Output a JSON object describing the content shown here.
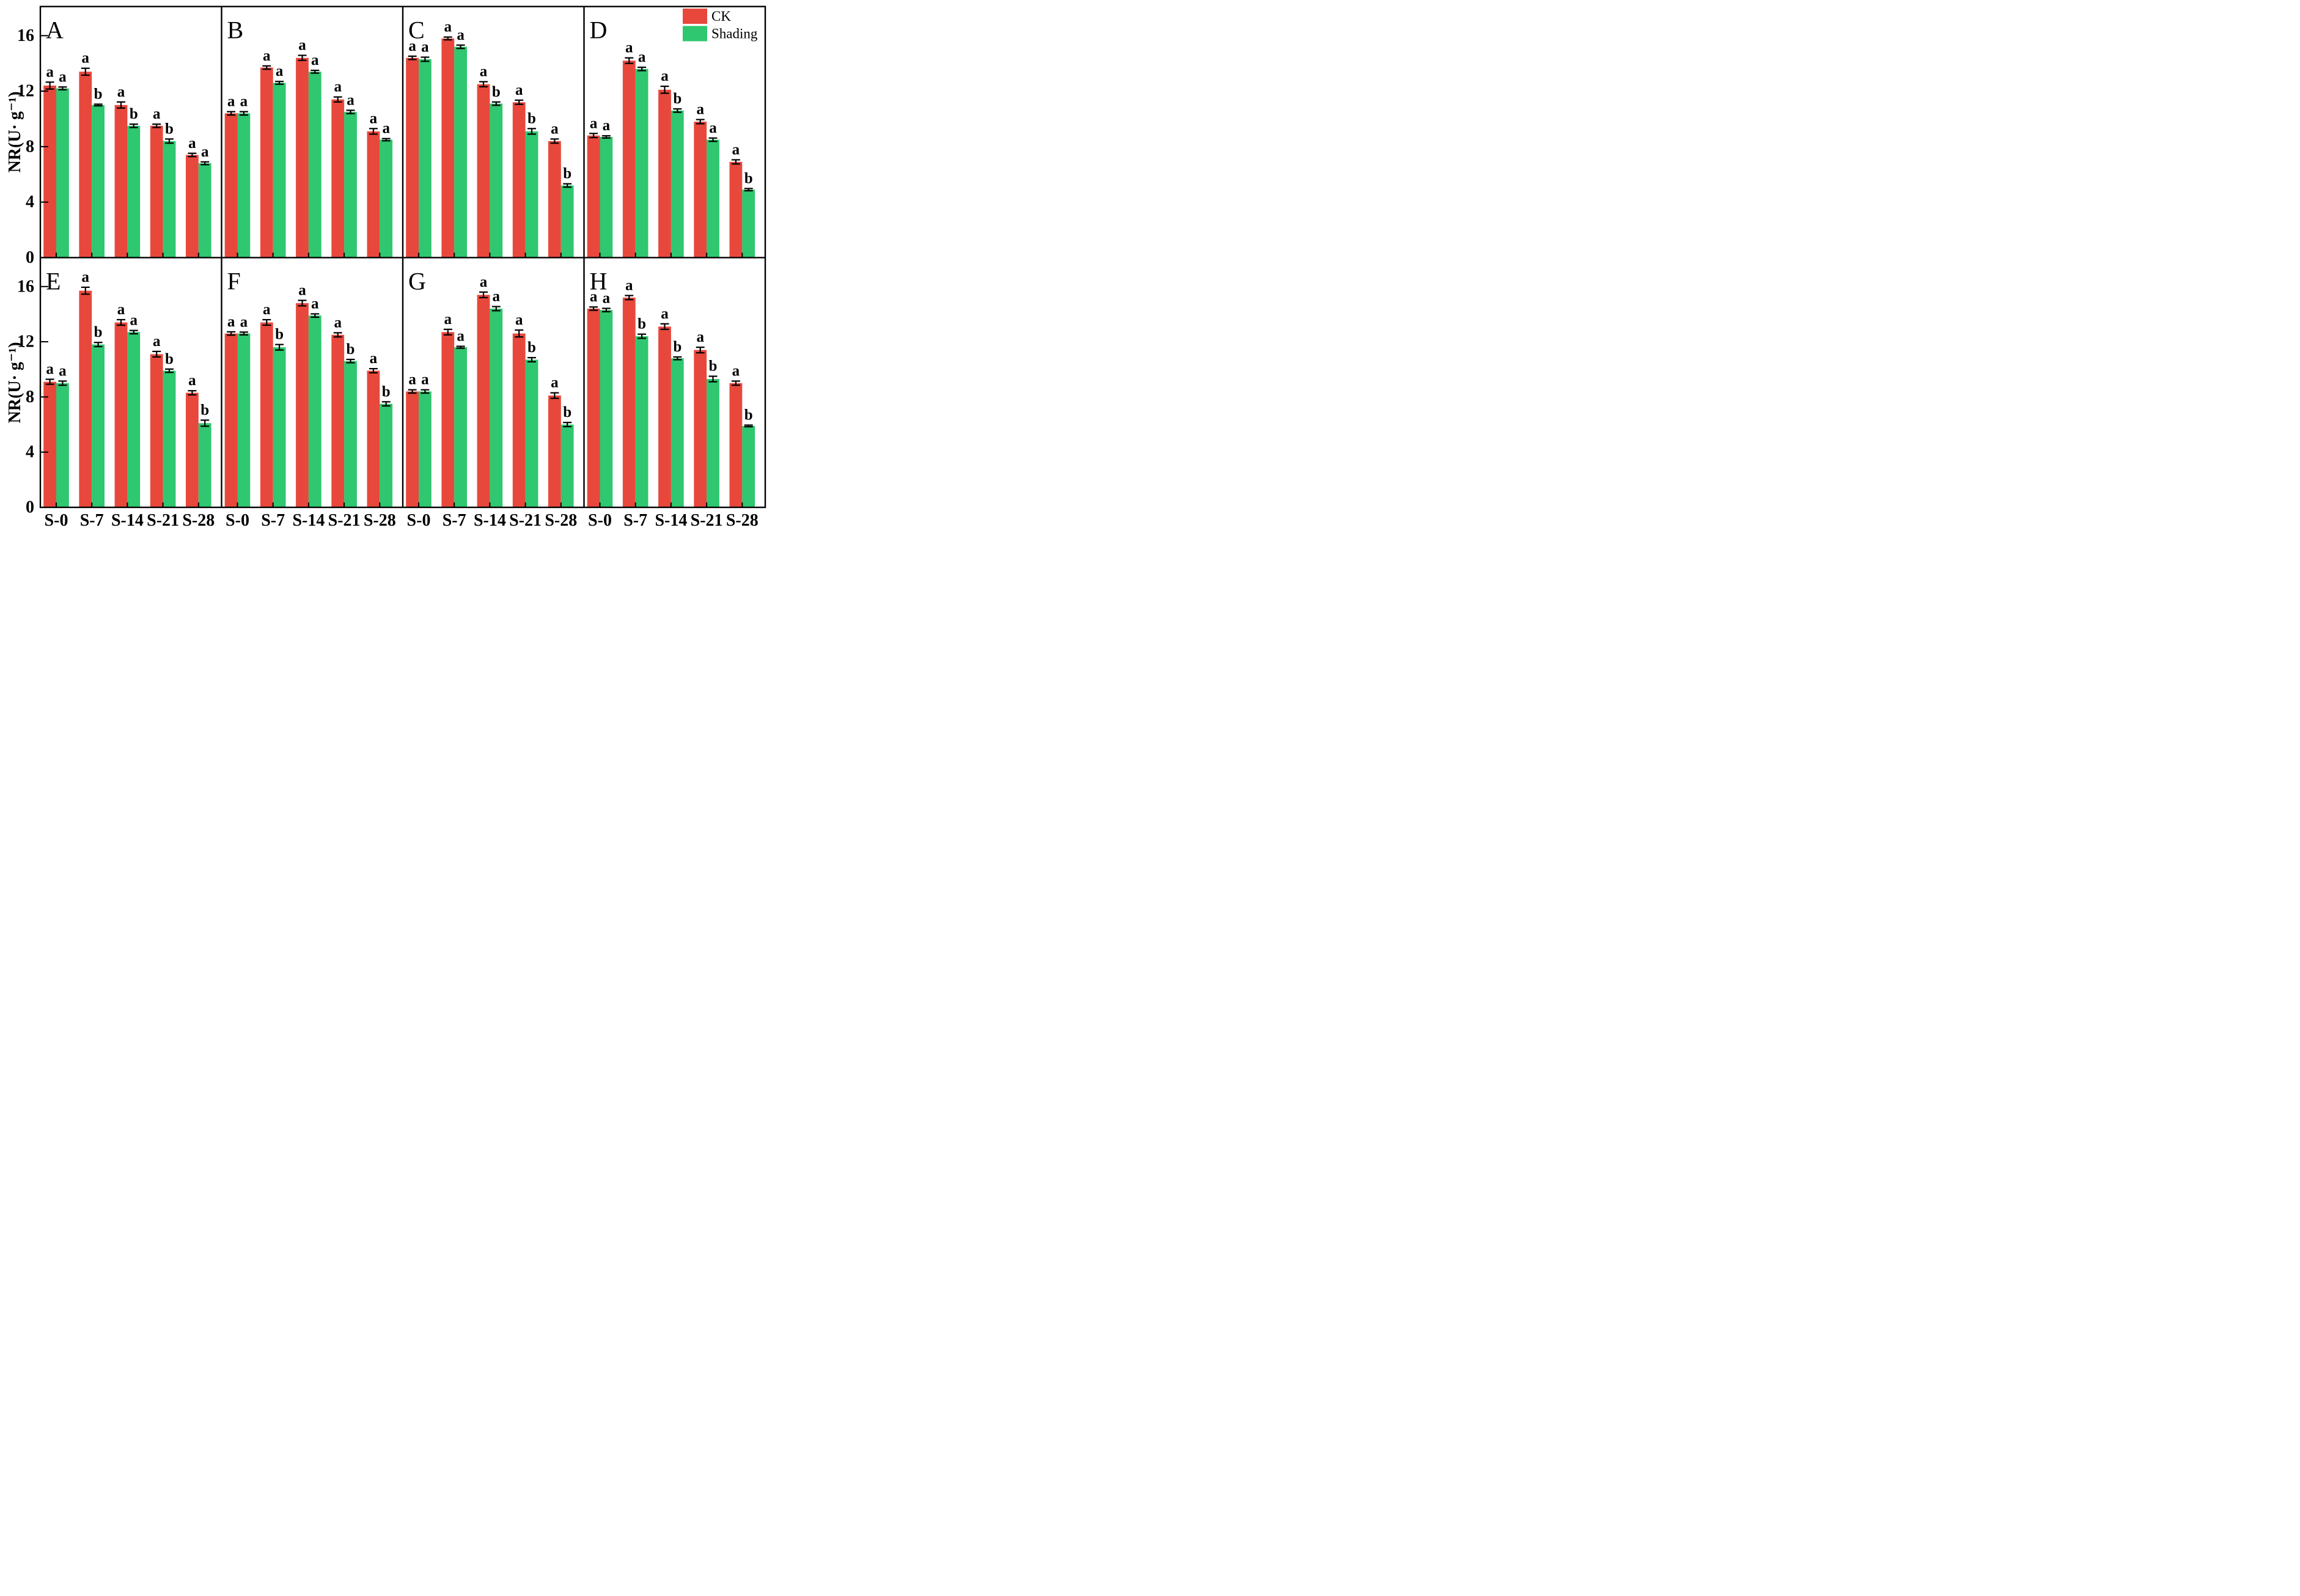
{
  "chart_data": {
    "type": "bar",
    "title": "",
    "ylabel": "NR(U· g⁻¹)",
    "categories": [
      "S-0",
      "S-7",
      "S-14",
      "S-21",
      "S-28"
    ],
    "ylim": [
      0,
      18.1
    ],
    "yticks": [
      0,
      4,
      8,
      12,
      16
    ],
    "grid": false,
    "legend_position": "top-right",
    "series_names": [
      "CK",
      "Shading"
    ],
    "colors": {
      "CK": "#e8483c",
      "Shading": "#2fc76f"
    },
    "panels": [
      {
        "label": "A",
        "series": [
          {
            "name": "CK",
            "values": [
              12.4,
              13.4,
              11.0,
              9.5,
              7.4
            ],
            "errors": [
              0.25,
              0.25,
              0.22,
              0.12,
              0.12
            ],
            "letters": [
              "a",
              "a",
              "a",
              "a",
              "a"
            ]
          },
          {
            "name": "Shading",
            "values": [
              12.2,
              11.0,
              9.5,
              8.4,
              6.8
            ],
            "errors": [
              0.1,
              0.06,
              0.12,
              0.15,
              0.1
            ],
            "letters": [
              "a",
              "b",
              "b",
              "b",
              "a"
            ]
          }
        ]
      },
      {
        "label": "B",
        "series": [
          {
            "name": "CK",
            "values": [
              10.4,
              13.7,
              14.4,
              11.4,
              9.1
            ],
            "errors": [
              0.12,
              0.12,
              0.18,
              0.18,
              0.2
            ],
            "letters": [
              "a",
              "a",
              "a",
              "a",
              "a"
            ]
          },
          {
            "name": "Shading",
            "values": [
              10.4,
              12.6,
              13.4,
              10.5,
              8.5
            ],
            "errors": [
              0.12,
              0.1,
              0.1,
              0.12,
              0.08
            ],
            "letters": [
              "a",
              "a",
              "a",
              "a",
              "a"
            ]
          }
        ]
      },
      {
        "label": "C",
        "series": [
          {
            "name": "CK",
            "values": [
              14.4,
              15.8,
              12.5,
              11.2,
              8.4
            ],
            "errors": [
              0.12,
              0.1,
              0.18,
              0.15,
              0.15
            ],
            "letters": [
              "a",
              "a",
              "a",
              "a",
              "a"
            ]
          },
          {
            "name": "Shading",
            "values": [
              14.3,
              15.2,
              11.1,
              9.1,
              5.2
            ],
            "errors": [
              0.15,
              0.12,
              0.12,
              0.2,
              0.12
            ],
            "letters": [
              "a",
              "a",
              "b",
              "b",
              "b"
            ]
          }
        ]
      },
      {
        "label": "D",
        "series": [
          {
            "name": "CK",
            "values": [
              8.8,
              14.2,
              12.1,
              9.8,
              6.9
            ],
            "errors": [
              0.15,
              0.2,
              0.25,
              0.15,
              0.15
            ],
            "letters": [
              "a",
              "a",
              "a",
              "a",
              "a"
            ]
          },
          {
            "name": "Shading",
            "values": [
              8.7,
              13.6,
              10.6,
              8.5,
              4.9
            ],
            "errors": [
              0.08,
              0.12,
              0.12,
              0.12,
              0.08
            ],
            "letters": [
              "a",
              "a",
              "b",
              "a",
              "b"
            ]
          }
        ]
      },
      {
        "label": "E",
        "series": [
          {
            "name": "CK",
            "values": [
              9.1,
              15.7,
              13.4,
              11.1,
              8.3
            ],
            "errors": [
              0.18,
              0.25,
              0.2,
              0.2,
              0.15
            ],
            "letters": [
              "a",
              "a",
              "a",
              "a",
              "a"
            ]
          },
          {
            "name": "Shading",
            "values": [
              9.0,
              11.8,
              12.7,
              9.9,
              6.1
            ],
            "errors": [
              0.15,
              0.15,
              0.12,
              0.12,
              0.22
            ],
            "letters": [
              "a",
              "b",
              "a",
              "b",
              "b"
            ]
          }
        ]
      },
      {
        "label": "F",
        "series": [
          {
            "name": "CK",
            "values": [
              12.6,
              13.4,
              14.8,
              12.5,
              9.9
            ],
            "errors": [
              0.12,
              0.2,
              0.2,
              0.15,
              0.15
            ],
            "letters": [
              "a",
              "a",
              "a",
              "a",
              "a"
            ]
          },
          {
            "name": "Shading",
            "values": [
              12.6,
              11.6,
              13.9,
              10.6,
              7.5
            ],
            "errors": [
              0.1,
              0.2,
              0.12,
              0.12,
              0.15
            ],
            "letters": [
              "a",
              "b",
              "a",
              "b",
              "b"
            ]
          }
        ]
      },
      {
        "label": "G",
        "series": [
          {
            "name": "CK",
            "values": [
              8.4,
              12.7,
              15.4,
              12.6,
              8.1
            ],
            "errors": [
              0.12,
              0.2,
              0.2,
              0.25,
              0.2
            ],
            "letters": [
              "a",
              "a",
              "a",
              "a",
              "a"
            ]
          },
          {
            "name": "Shading",
            "values": [
              8.4,
              11.6,
              14.4,
              10.7,
              6.0
            ],
            "errors": [
              0.12,
              0.07,
              0.15,
              0.15,
              0.15
            ],
            "letters": [
              "a",
              "a",
              "a",
              "b",
              "b"
            ]
          }
        ]
      },
      {
        "label": "H",
        "series": [
          {
            "name": "CK",
            "values": [
              14.4,
              15.2,
              13.1,
              11.4,
              9.0
            ],
            "errors": [
              0.12,
              0.15,
              0.2,
              0.2,
              0.15
            ],
            "letters": [
              "a",
              "a",
              "a",
              "a",
              "a"
            ]
          },
          {
            "name": "Shading",
            "values": [
              14.3,
              12.4,
              10.8,
              9.3,
              5.9
            ],
            "errors": [
              0.12,
              0.15,
              0.1,
              0.2,
              0.06
            ],
            "letters": [
              "a",
              "b",
              "b",
              "b",
              "b"
            ]
          }
        ]
      }
    ]
  },
  "legend": {
    "items": [
      {
        "label": "CK",
        "color": "#e8483c"
      },
      {
        "label": "Shading",
        "color": "#2fc76f"
      }
    ]
  }
}
